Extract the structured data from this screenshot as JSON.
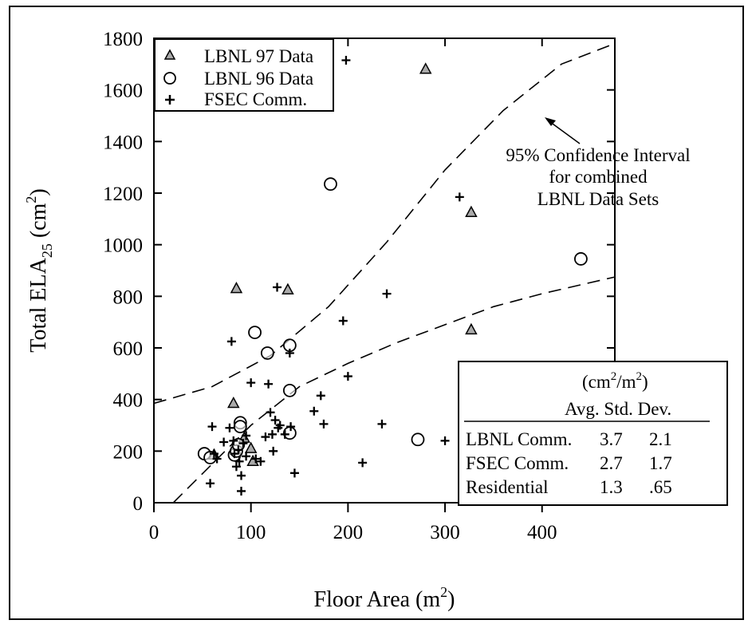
{
  "chart_data": {
    "type": "scatter",
    "xlabel": "Floor Area (m",
    "xlabel_sup": "2",
    "xlabel_end": ")",
    "ylabel": "Total ELA",
    "ylabel_sub": "25",
    "ylabel_mid": " (cm",
    "ylabel_sup": "2",
    "ylabel_end": ")",
    "xlim": [
      0,
      475
    ],
    "ylim": [
      0,
      1800
    ],
    "x_ticks": [
      0,
      100,
      200,
      300,
      400
    ],
    "y_ticks": [
      0,
      200,
      400,
      600,
      800,
      1000,
      1200,
      1400,
      1600,
      1800
    ],
    "grid": false,
    "legend_position": "top-left",
    "series": [
      {
        "name": "LBNL 97 Data",
        "marker": "triangle",
        "points": [
          [
            62,
            185
          ],
          [
            82,
            385
          ],
          [
            85,
            830
          ],
          [
            93,
            250
          ],
          [
            100,
            210
          ],
          [
            102,
            160
          ],
          [
            138,
            825
          ],
          [
            280,
            1680
          ],
          [
            327,
            1125
          ],
          [
            327,
            670
          ]
        ]
      },
      {
        "name": "LBNL 96 Data",
        "marker": "circle",
        "points": [
          [
            52,
            190
          ],
          [
            58,
            175
          ],
          [
            83,
            185
          ],
          [
            85,
            200
          ],
          [
            87,
            225
          ],
          [
            89,
            310
          ],
          [
            89,
            295
          ],
          [
            104,
            660
          ],
          [
            117,
            580
          ],
          [
            140,
            610
          ],
          [
            140,
            435
          ],
          [
            140,
            270
          ],
          [
            182,
            1235
          ],
          [
            272,
            245
          ],
          [
            440,
            945
          ]
        ]
      },
      {
        "name": "FSEC Comm.",
        "marker": "plus",
        "points": [
          [
            58,
            75
          ],
          [
            60,
            295
          ],
          [
            62,
            190
          ],
          [
            65,
            170
          ],
          [
            72,
            235
          ],
          [
            78,
            290
          ],
          [
            80,
            625
          ],
          [
            82,
            240
          ],
          [
            83,
            190
          ],
          [
            85,
            140
          ],
          [
            87,
            205
          ],
          [
            88,
            160
          ],
          [
            90,
            105
          ],
          [
            90,
            45
          ],
          [
            92,
            230
          ],
          [
            95,
            260
          ],
          [
            95,
            180
          ],
          [
            100,
            465
          ],
          [
            105,
            170
          ],
          [
            110,
            160
          ],
          [
            115,
            255
          ],
          [
            118,
            460
          ],
          [
            120,
            350
          ],
          [
            122,
            265
          ],
          [
            123,
            200
          ],
          [
            125,
            320
          ],
          [
            127,
            835
          ],
          [
            128,
            290
          ],
          [
            130,
            300
          ],
          [
            135,
            265
          ],
          [
            140,
            580
          ],
          [
            141,
            295
          ],
          [
            145,
            115
          ],
          [
            165,
            355
          ],
          [
            172,
            415
          ],
          [
            175,
            305
          ],
          [
            195,
            705
          ],
          [
            200,
            490
          ],
          [
            215,
            155
          ],
          [
            235,
            305
          ],
          [
            240,
            810
          ],
          [
            300,
            240
          ],
          [
            315,
            1185
          ],
          [
            198,
            1715
          ]
        ]
      }
    ],
    "curves": [
      {
        "name": "upper",
        "points": [
          [
            0,
            385
          ],
          [
            60,
            450
          ],
          [
            120,
            570
          ],
          [
            180,
            760
          ],
          [
            240,
            1010
          ],
          [
            300,
            1290
          ],
          [
            360,
            1520
          ],
          [
            420,
            1700
          ],
          [
            475,
            1780
          ]
        ]
      },
      {
        "name": "lower",
        "points": [
          [
            20,
            0
          ],
          [
            60,
            150
          ],
          [
            100,
            300
          ],
          [
            150,
            450
          ],
          [
            200,
            540
          ],
          [
            250,
            620
          ],
          [
            300,
            690
          ],
          [
            350,
            760
          ],
          [
            400,
            810
          ],
          [
            475,
            875
          ]
        ]
      }
    ],
    "annotation": {
      "lines": [
        "95% Confidence Interval",
        "for combined",
        "LBNL Data Sets"
      ]
    },
    "stats_table": {
      "unit_open": "(cm",
      "unit_sup": "2",
      "unit_close": "/m",
      "unit_sup2": "2",
      "unit_end": ")",
      "header": "Avg. Std. Dev.",
      "rows": [
        {
          "label": "LBNL Comm.",
          "avg": "3.7",
          "std": "2.1"
        },
        {
          "label": "FSEC Comm.",
          "avg": "2.7",
          "std": "1.7"
        },
        {
          "label": "Residential",
          "avg": "1.3",
          "std": ".65"
        }
      ]
    }
  }
}
